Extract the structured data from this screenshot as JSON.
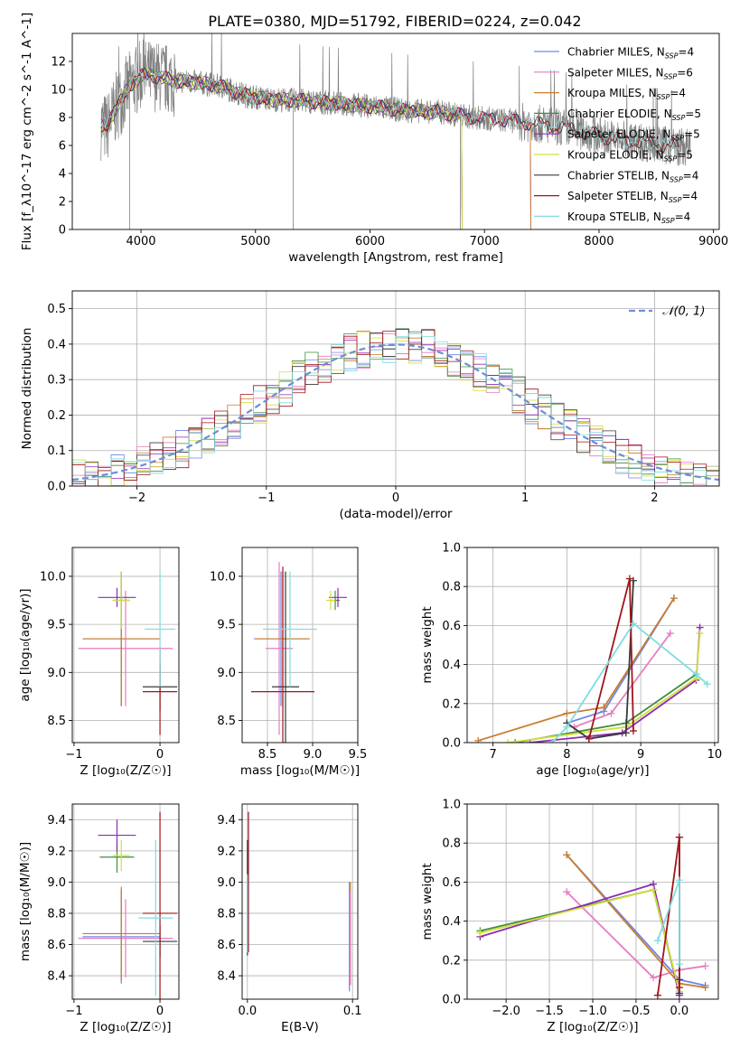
{
  "figure": {
    "title": "PLATE=0380, MJD=51792, FIBERID=0224, z=0.042"
  },
  "colors": {
    "Chabrier MILES": "#6f87e8",
    "Salpeter MILES": "#e87cbf",
    "Kroupa MILES": "#c87d2d",
    "Chabrier ELODIE": "#3f8f3f",
    "Salpeter ELODIE": "#8e2bb5",
    "Kroupa ELODIE": "#d3df3c",
    "Chabrier STELIB": "#3a3a3a",
    "Salpeter STELIB": "#a0151a",
    "Kroupa STELIB": "#7fdce0",
    "gaussian": "#6b8fd6",
    "data": "#808080",
    "grid": "#b0b0b0"
  },
  "chart_data": [
    {
      "id": "spectrum",
      "type": "line",
      "xlabel": "wavelength [Angstrom, rest frame]",
      "ylabel": "Flux [f_λ10^-17 erg cm^-2 s^-1 A^-1]",
      "xlim": [
        3400,
        9050
      ],
      "ylim": [
        0,
        14
      ],
      "xticks": [
        4000,
        5000,
        6000,
        7000,
        8000,
        9000
      ],
      "yticks": [
        0,
        2,
        4,
        6,
        8,
        10,
        12
      ],
      "grid": false,
      "legend_position": "top-right",
      "legend": [
        {
          "base": "Chabrier MILES, N",
          "sub": "SSP",
          "tail": "=4"
        },
        {
          "base": "Salpeter MILES, N",
          "sub": "SSP",
          "tail": "=6"
        },
        {
          "base": "Kroupa MILES, N",
          "sub": "SSP",
          "tail": "=4"
        },
        {
          "base": "Chabrier ELODIE, N",
          "sub": "SSP",
          "tail": "=5"
        },
        {
          "base": "Salpeter ELODIE, N",
          "sub": "SSP",
          "tail": "=5"
        },
        {
          "base": "Kroupa ELODIE, N",
          "sub": "SSP",
          "tail": "=5"
        },
        {
          "base": "Chabrier STELIB, N",
          "sub": "SSP",
          "tail": "=4"
        },
        {
          "base": "Salpeter STELIB, N",
          "sub": "SSP",
          "tail": "=4"
        },
        {
          "base": "Kroupa STELIB, N",
          "sub": "SSP",
          "tail": "=4"
        }
      ],
      "data_range": [
        3650,
        8800
      ],
      "continuum": [
        [
          3650,
          7.5
        ],
        [
          3700,
          7.2
        ],
        [
          3800,
          9.0
        ],
        [
          3900,
          10.2
        ],
        [
          4000,
          11.0
        ],
        [
          4100,
          11.0
        ],
        [
          4300,
          10.6
        ],
        [
          4500,
          10.5
        ],
        [
          4700,
          10.2
        ],
        [
          4900,
          9.6
        ],
        [
          5100,
          9.3
        ],
        [
          5400,
          9.2
        ],
        [
          5700,
          9.0
        ],
        [
          6000,
          8.8
        ],
        [
          6300,
          8.5
        ],
        [
          6600,
          8.4
        ],
        [
          6900,
          8.0
        ],
        [
          7200,
          7.8
        ],
        [
          7500,
          7.5
        ],
        [
          7800,
          7.1
        ],
        [
          8100,
          6.5
        ],
        [
          8400,
          6.2
        ],
        [
          8800,
          5.8
        ]
      ],
      "model_end": {
        "MILES": 7400,
        "ELODIE": 6800,
        "STELIB": 8700
      }
    },
    {
      "id": "residuals",
      "type": "step",
      "xlabel": "(data-model)/error",
      "ylabel": "Normed distribution",
      "xlim": [
        -2.5,
        2.5
      ],
      "ylim": [
        0,
        0.55
      ],
      "xticks": [
        -2,
        -1,
        0,
        1,
        2
      ],
      "yticks": [
        0,
        0.1,
        0.2,
        0.3,
        0.4,
        0.5
      ],
      "grid": true,
      "legend_position": "top-right",
      "gaussian_label": "𝒩(0, 1)",
      "bin_width": 0.1,
      "bin_start": -2.5
    },
    {
      "id": "z_age",
      "type": "errorbar",
      "xlabel": "Z [log₁₀(Z/Z☉)]",
      "ylabel": "age  [log₁₀(age/yr)]",
      "xlim": [
        -1.02,
        0.22
      ],
      "ylim": [
        8.27,
        10.3
      ],
      "xticks": [
        -1,
        0
      ],
      "yticks": [
        8.5,
        9.0,
        9.5,
        10.0
      ],
      "grid": true,
      "points": [
        {
          "series": "Chabrier MILES",
          "x": -0.45,
          "y": 9.35,
          "xerr": 0.45,
          "yerr": 0.7
        },
        {
          "series": "Salpeter MILES",
          "x": -0.4,
          "y": 9.25,
          "xerr": 0.55,
          "yerr": 0.6
        },
        {
          "series": "Kroupa MILES",
          "x": -0.45,
          "y": 9.35,
          "xerr": 0.45,
          "yerr": 0.7
        },
        {
          "series": "Chabrier ELODIE",
          "x": -0.45,
          "y": 9.75,
          "xerr": 0.1,
          "yerr": 0.3
        },
        {
          "series": "Salpeter ELODIE",
          "x": -0.5,
          "y": 9.78,
          "xerr": 0.22,
          "yerr": 0.1
        },
        {
          "series": "Kroupa ELODIE",
          "x": -0.45,
          "y": 9.75,
          "xerr": 0.1,
          "yerr": 0.3
        },
        {
          "series": "Chabrier STELIB",
          "x": 0.0,
          "y": 8.85,
          "xerr": 0.2,
          "yerr": 0.25
        },
        {
          "series": "Salpeter STELIB",
          "x": 0.0,
          "y": 8.8,
          "xerr": 0.2,
          "yerr": 0.45
        },
        {
          "series": "Kroupa STELIB",
          "x": 0.0,
          "y": 9.45,
          "xerr": 0.18,
          "yerr": 0.6
        }
      ]
    },
    {
      "id": "mass_age",
      "type": "errorbar",
      "xlabel": "mass [log₁₀(M/M☉)]",
      "ylabel": "",
      "xlim": [
        8.22,
        9.5
      ],
      "ylim": [
        8.27,
        10.3
      ],
      "xticks": [
        8.5,
        9.0,
        9.5
      ],
      "yticks": [
        8.5,
        9.0,
        9.5,
        10.0
      ],
      "grid": true,
      "points": [
        {
          "series": "Chabrier MILES",
          "x": 8.65,
          "y": 9.35,
          "xerr": 0.3,
          "yerr": 0.7
        },
        {
          "series": "Salpeter MILES",
          "x": 8.63,
          "y": 9.25,
          "xerr": 0.15,
          "yerr": 0.9
        },
        {
          "series": "Kroupa MILES",
          "x": 8.67,
          "y": 9.35,
          "xerr": 0.3,
          "yerr": 0.7
        },
        {
          "series": "Chabrier ELODIE",
          "x": 9.25,
          "y": 9.75,
          "xerr": 0.05,
          "yerr": 0.1
        },
        {
          "series": "Salpeter ELODIE",
          "x": 9.28,
          "y": 9.78,
          "xerr": 0.1,
          "yerr": 0.1
        },
        {
          "series": "Kroupa ELODIE",
          "x": 9.2,
          "y": 9.75,
          "xerr": 0.05,
          "yerr": 0.1
        },
        {
          "series": "Chabrier STELIB",
          "x": 8.7,
          "y": 8.85,
          "xerr": 0.15,
          "yerr": 1.2
        },
        {
          "series": "Salpeter STELIB",
          "x": 8.67,
          "y": 8.8,
          "xerr": 0.35,
          "yerr": 1.3
        },
        {
          "series": "Kroupa STELIB",
          "x": 8.75,
          "y": 9.45,
          "xerr": 0.3,
          "yerr": 0.6
        }
      ]
    },
    {
      "id": "age_weight",
      "type": "line",
      "xlabel": "age  [log₁₀(age/yr)]",
      "ylabel": "mass weight",
      "xlim": [
        6.65,
        10.05
      ],
      "ylim": [
        0,
        1.0
      ],
      "xticks": [
        7,
        8,
        9,
        10
      ],
      "yticks": [
        0.0,
        0.2,
        0.4,
        0.6,
        0.8,
        1.0
      ],
      "grid": true,
      "series": [
        {
          "name": "Chabrier MILES",
          "x": [
            8.0,
            8.5,
            9.45
          ],
          "y": [
            0.1,
            0.16,
            0.74
          ]
        },
        {
          "name": "Salpeter MILES",
          "x": [
            8.1,
            8.6,
            9.4
          ],
          "y": [
            0.08,
            0.15,
            0.56
          ]
        },
        {
          "name": "Kroupa MILES",
          "x": [
            6.8,
            8.0,
            8.5,
            9.45
          ],
          "y": [
            0.01,
            0.15,
            0.18,
            0.74
          ]
        },
        {
          "name": "Chabrier ELODIE",
          "x": [
            7.3,
            8.8,
            9.75
          ],
          "y": [
            0.0,
            0.1,
            0.35
          ]
        },
        {
          "name": "Salpeter ELODIE",
          "x": [
            7.5,
            8.75,
            9.75,
            9.8
          ],
          "y": [
            0.0,
            0.05,
            0.32,
            0.59
          ]
        },
        {
          "name": "Kroupa ELODIE",
          "x": [
            7.2,
            8.8,
            9.75,
            9.8
          ],
          "y": [
            0.0,
            0.08,
            0.33,
            0.56
          ]
        },
        {
          "name": "Chabrier STELIB",
          "x": [
            8.0,
            8.3,
            8.8,
            8.9
          ],
          "y": [
            0.1,
            0.02,
            0.05,
            0.83
          ]
        },
        {
          "name": "Salpeter STELIB",
          "x": [
            8.3,
            8.85,
            8.9
          ],
          "y": [
            0.02,
            0.84,
            0.06
          ]
        },
        {
          "name": "Kroupa STELIB",
          "x": [
            7.8,
            8.0,
            8.9,
            9.75,
            9.9
          ],
          "y": [
            0.0,
            0.08,
            0.61,
            0.35,
            0.3
          ]
        }
      ]
    },
    {
      "id": "z_mass",
      "type": "errorbar",
      "xlabel": "Z [log₁₀(Z/Z☉)]",
      "ylabel": "mass [log₁₀(M/M☉)]",
      "xlim": [
        -1.02,
        0.22
      ],
      "ylim": [
        8.25,
        9.5
      ],
      "xticks": [
        -1,
        0
      ],
      "yticks": [
        8.4,
        8.6,
        8.8,
        9.0,
        9.2,
        9.4
      ],
      "grid": true,
      "points": [
        {
          "series": "Chabrier MILES",
          "x": -0.45,
          "y": 8.65,
          "xerr": 0.45,
          "yerr": 0.3
        },
        {
          "series": "Salpeter MILES",
          "x": -0.4,
          "y": 8.64,
          "xerr": 0.55,
          "yerr": 0.25
        },
        {
          "series": "Kroupa MILES",
          "x": -0.45,
          "y": 8.67,
          "xerr": 0.45,
          "yerr": 0.3
        },
        {
          "series": "Chabrier ELODIE",
          "x": -0.5,
          "y": 9.16,
          "xerr": 0.2,
          "yerr": 0.1
        },
        {
          "series": "Salpeter ELODIE",
          "x": -0.5,
          "y": 9.3,
          "xerr": 0.22,
          "yerr": 0.1
        },
        {
          "series": "Kroupa ELODIE",
          "x": -0.45,
          "y": 9.17,
          "xerr": 0.1,
          "yerr": 0.1
        },
        {
          "series": "Chabrier STELIB",
          "x": 0.0,
          "y": 8.62,
          "xerr": 0.2,
          "yerr": 0.1
        },
        {
          "series": "Salpeter STELIB",
          "x": 0.0,
          "y": 8.8,
          "xerr": 0.2,
          "yerr": 0.65
        },
        {
          "series": "Kroupa STELIB",
          "x": -0.05,
          "y": 8.77,
          "xerr": 0.2,
          "yerr": 0.5
        }
      ]
    },
    {
      "id": "ebv_mass",
      "type": "errorbar",
      "xlabel": "E(B-V)",
      "ylabel": "",
      "xlim": [
        -0.005,
        0.105
      ],
      "ylim": [
        8.25,
        9.5
      ],
      "xticks": [
        0.0,
        0.1
      ],
      "yticks": [
        8.4,
        8.6,
        8.8,
        9.0,
        9.2,
        9.4
      ],
      "grid": true,
      "points": [
        {
          "series": "Chabrier MILES",
          "x": 0.097,
          "y": 8.65,
          "xerr": 0,
          "yerr": 0.35
        },
        {
          "series": "Kroupa MILES",
          "x": 0.098,
          "y": 8.67,
          "xerr": 0,
          "yerr": 0.33
        },
        {
          "series": "Salpeter MILES",
          "x": 0.098,
          "y": 8.64,
          "xerr": 0,
          "yerr": 0.3
        },
        {
          "series": "Chabrier STELIB",
          "x": 0.0,
          "y": 8.9,
          "xerr": 0,
          "yerr": 0.37
        },
        {
          "series": "Salpeter STELIB",
          "x": 0.001,
          "y": 9.0,
          "xerr": 0,
          "yerr": 0.45
        },
        {
          "series": "Kroupa STELIB",
          "x": 0.0,
          "y": 8.8,
          "xerr": 0,
          "yerr": 0.25
        }
      ]
    },
    {
      "id": "z_weight",
      "type": "line",
      "xlabel": "Z [log₁₀(Z/Z☉)]",
      "ylabel": "mass weight",
      "xlim": [
        -2.45,
        0.45
      ],
      "ylim": [
        0,
        1.0
      ],
      "xticks": [
        -2.0,
        -1.5,
        -1.0,
        -0.5,
        0.0
      ],
      "yticks": [
        0.0,
        0.2,
        0.4,
        0.6,
        0.8,
        1.0
      ],
      "grid": true,
      "series": [
        {
          "name": "Chabrier MILES",
          "x": [
            -1.3,
            0.0,
            0.3
          ],
          "y": [
            0.74,
            0.1,
            0.07
          ]
        },
        {
          "name": "Salpeter MILES",
          "x": [
            -1.3,
            -0.3,
            0.0,
            0.3
          ],
          "y": [
            0.55,
            0.11,
            0.15,
            0.17
          ]
        },
        {
          "name": "Kroupa MILES",
          "x": [
            -1.3,
            0.0,
            0.3
          ],
          "y": [
            0.74,
            0.08,
            0.06
          ]
        },
        {
          "name": "Chabrier ELODIE",
          "x": [
            -2.3,
            -0.3,
            0.0
          ],
          "y": [
            0.35,
            0.56,
            0.03
          ]
        },
        {
          "name": "Salpeter ELODIE",
          "x": [
            -2.3,
            -0.3,
            0.0
          ],
          "y": [
            0.32,
            0.59,
            0.02
          ]
        },
        {
          "name": "Kroupa ELODIE",
          "x": [
            -2.3,
            -0.3,
            0.0
          ],
          "y": [
            0.34,
            0.56,
            0.04
          ]
        },
        {
          "name": "Chabrier STELIB",
          "x": [
            0.0,
            0.0,
            0.0
          ],
          "y": [
            0.83,
            0.1,
            0.03
          ]
        },
        {
          "name": "Salpeter STELIB",
          "x": [
            -0.25,
            0.0,
            0.0
          ],
          "y": [
            0.02,
            0.83,
            0.06
          ]
        },
        {
          "name": "Kroupa STELIB",
          "x": [
            -0.25,
            0.0,
            0.0
          ],
          "y": [
            0.3,
            0.61,
            0.18
          ]
        }
      ]
    }
  ]
}
